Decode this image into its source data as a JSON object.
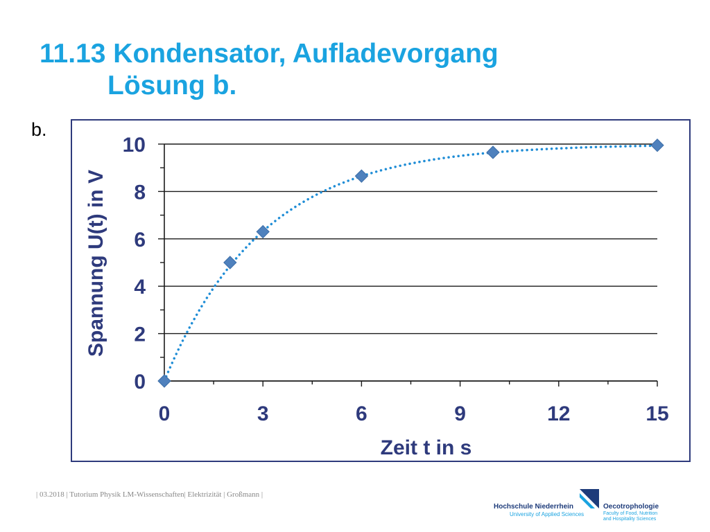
{
  "slide": {
    "title_line1": "11.13 Kondensator, Aufladevorgang",
    "title_line2": "Lösung b.",
    "section_label": "b.",
    "footer_text": "| 03.2018 | Tutorium Physik LM-Wissenschaften| Elektrizität | Großmann |"
  },
  "logos": {
    "university_name": "Hochschule Niederrhein",
    "university_sub": "University of Applied Sciences",
    "faculty_name": "Oecotrophologie",
    "faculty_sub_line1": "Faculty of Food, Nutrition",
    "faculty_sub_line2": "and Hospitality Sciences"
  },
  "colors": {
    "title": "#1aa3e0",
    "axis_text": "#2e3a7c",
    "marker": "#4f81bd",
    "trendline": "#1f8dd6",
    "frame": "#2e3a7c"
  },
  "chart_data": {
    "type": "scatter",
    "xlabel": "Zeit t in s",
    "ylabel": "Spannung U(t) in V",
    "xlim": [
      0,
      15
    ],
    "ylim": [
      0,
      10
    ],
    "x_ticks": [
      "0",
      "3",
      "6",
      "9",
      "12",
      "15"
    ],
    "y_ticks": [
      "0",
      "2",
      "4",
      "6",
      "8",
      "10"
    ],
    "grid": "horizontal",
    "trendline": "dotted",
    "series": [
      {
        "x": [
          0,
          2,
          3,
          6,
          10,
          15
        ],
        "y": [
          0,
          5,
          6.3,
          8.65,
          9.65,
          9.95
        ]
      }
    ]
  }
}
